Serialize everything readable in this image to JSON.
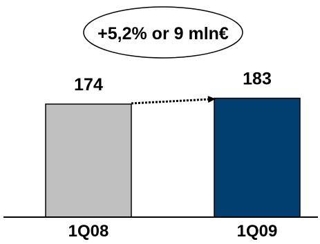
{
  "chart_data": {
    "type": "bar",
    "categories": [
      "1Q08",
      "1Q09"
    ],
    "values": [
      174,
      183
    ],
    "data_labels": [
      "174",
      "183"
    ],
    "annotation": "+5,2% or 9 mln€",
    "ylim": [
      0,
      200
    ],
    "grid": false,
    "legend": "none",
    "bar_colors": [
      "#c0c0c0",
      "#003f6f"
    ],
    "bar_stroke": "#000000"
  }
}
